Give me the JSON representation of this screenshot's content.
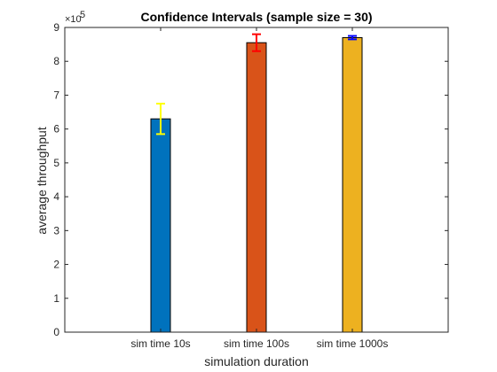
{
  "chart_data": {
    "type": "bar",
    "title": "Confidence Intervals (sample size = 30)",
    "xlabel": "simulation duration",
    "ylabel": "average throughput",
    "y_exponent_label": "×10",
    "y_exponent_power": "5",
    "y_multiplier": 100000,
    "ylim": [
      0,
      900000
    ],
    "yticks": [
      0,
      100000,
      200000,
      300000,
      400000,
      500000,
      600000,
      700000,
      800000,
      900000
    ],
    "ytick_labels": [
      "0",
      "1",
      "2",
      "3",
      "4",
      "5",
      "6",
      "7",
      "8",
      "9"
    ],
    "categories": [
      "sim time 10s",
      "sim time 100s",
      "sim time 1000s"
    ],
    "values": [
      630000,
      855000,
      870000
    ],
    "error_low": [
      45000,
      25000,
      5000
    ],
    "error_high": [
      45000,
      25000,
      5000
    ],
    "bar_colors": [
      "#0072bd",
      "#d95319",
      "#edb120"
    ],
    "error_colors": [
      "#ffff00",
      "#ff0000",
      "#0000ff"
    ],
    "grid": false,
    "legend": "none"
  }
}
